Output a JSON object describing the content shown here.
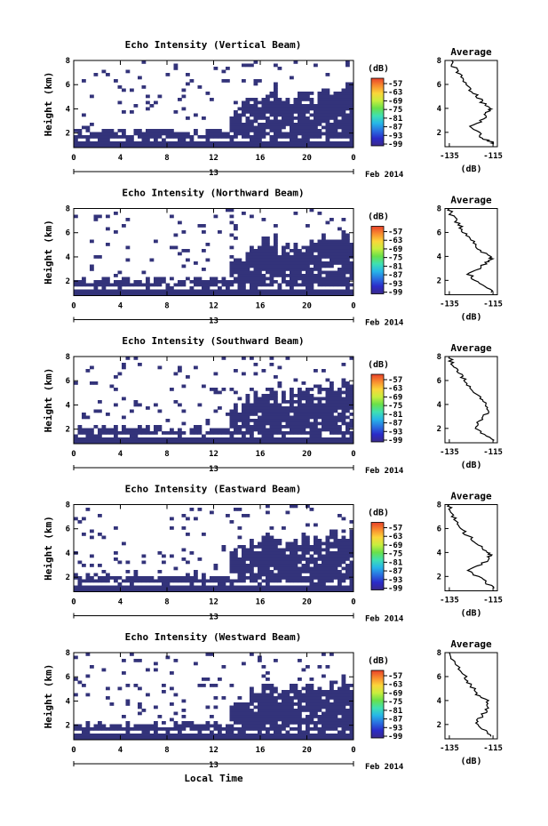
{
  "chart_data": [
    {
      "type": "heatmap",
      "title": "Echo Intensity (Vertical Beam)",
      "ylabel": "Height (km)",
      "x_ticks": [
        "0",
        "4",
        "8",
        "12",
        "16",
        "20",
        "0"
      ],
      "date_day": "13",
      "date_month_year": "Feb 2014",
      "ylim": [
        0.8,
        8
      ],
      "y_ticks": [
        "2",
        "4",
        "6",
        "8"
      ],
      "colorbar": {
        "unit": "(dB)",
        "ticks": [
          "-57",
          "-63",
          "-69",
          "-75",
          "-81",
          "-87",
          "-93",
          "-99"
        ]
      },
      "profile": {
        "title": "Average",
        "xlabel": "(dB)",
        "x_ticks": [
          "-135",
          "-115"
        ],
        "y_ticks": [
          "2",
          "4",
          "6",
          "8"
        ],
        "heights": [
          1.0,
          1.2,
          1.5,
          2.0,
          2.5,
          3.0,
          3.5,
          3.8,
          4.0,
          4.5,
          5.0,
          5.5,
          6.0,
          6.5,
          7.0,
          7.5,
          8.0
        ],
        "values": [
          -114,
          -116,
          -120,
          -122,
          -125,
          -120,
          -118,
          -117,
          -116,
          -120,
          -122,
          -125,
          -127,
          -129,
          -131,
          -133,
          -134
        ]
      }
    },
    {
      "type": "heatmap",
      "title": "Echo Intensity (Northward Beam)",
      "ylabel": "Height (km)",
      "x_ticks": [
        "0",
        "4",
        "8",
        "12",
        "16",
        "20",
        "0"
      ],
      "date_day": "13",
      "date_month_year": "Feb 2014",
      "ylim": [
        0.8,
        8
      ],
      "y_ticks": [
        "2",
        "4",
        "6",
        "8"
      ],
      "colorbar": {
        "unit": "(dB)",
        "ticks": [
          "-57",
          "-63",
          "-69",
          "-75",
          "-81",
          "-87",
          "-93",
          "-99"
        ]
      },
      "profile": {
        "title": "Average",
        "xlabel": "(dB)",
        "x_ticks": [
          "-135",
          "-115"
        ],
        "y_ticks": [
          "2",
          "4",
          "6",
          "8"
        ],
        "heights": [
          1.0,
          1.5,
          2.0,
          2.5,
          3.0,
          3.5,
          3.8,
          4.0,
          4.5,
          5.0,
          5.5,
          6.0,
          6.5,
          7.0,
          7.5,
          8.0
        ],
        "values": [
          -115,
          -118,
          -123,
          -126,
          -121,
          -118,
          -116,
          -117,
          -121,
          -123,
          -126,
          -128,
          -130,
          -132,
          -134,
          -135
        ]
      }
    },
    {
      "type": "heatmap",
      "title": "Echo Intensity (Southward Beam)",
      "ylabel": "Height (km)",
      "x_ticks": [
        "0",
        "4",
        "8",
        "12",
        "16",
        "20",
        "0"
      ],
      "date_day": "13",
      "date_month_year": "Feb 2014",
      "ylim": [
        0.8,
        8
      ],
      "y_ticks": [
        "2",
        "4",
        "6",
        "8"
      ],
      "colorbar": {
        "unit": "(dB)",
        "ticks": [
          "-57",
          "-63",
          "-69",
          "-75",
          "-81",
          "-87",
          "-93",
          "-99"
        ]
      },
      "profile": {
        "title": "Average",
        "xlabel": "(dB)",
        "x_ticks": [
          "-135",
          "-115"
        ],
        "y_ticks": [
          "2",
          "4",
          "6",
          "8"
        ],
        "heights": [
          1.0,
          1.5,
          2.0,
          2.5,
          3.0,
          3.5,
          4.0,
          4.5,
          5.0,
          5.5,
          6.0,
          6.5,
          7.0,
          7.5,
          8.0
        ],
        "values": [
          -115,
          -119,
          -124,
          -122,
          -119,
          -117,
          -118,
          -121,
          -123,
          -126,
          -128,
          -130,
          -132,
          -134,
          -135
        ]
      }
    },
    {
      "type": "heatmap",
      "title": "Echo Intensity (Eastward Beam)",
      "ylabel": "Height (km)",
      "x_ticks": [
        "0",
        "4",
        "8",
        "12",
        "16",
        "20",
        "0"
      ],
      "date_day": "13",
      "date_month_year": "Feb 2014",
      "ylim": [
        0.8,
        8
      ],
      "y_ticks": [
        "2",
        "4",
        "6",
        "8"
      ],
      "colorbar": {
        "unit": "(dB)",
        "ticks": [
          "-57",
          "-63",
          "-69",
          "-75",
          "-81",
          "-87",
          "-93",
          "-99"
        ]
      },
      "profile": {
        "title": "Average",
        "xlabel": "(dB)",
        "x_ticks": [
          "-135",
          "-115"
        ],
        "y_ticks": [
          "2",
          "4",
          "6",
          "8"
        ],
        "heights": [
          1.0,
          1.5,
          2.0,
          2.5,
          3.0,
          3.5,
          3.8,
          4.0,
          4.5,
          5.0,
          5.5,
          6.0,
          6.5,
          7.0,
          7.5,
          8.0
        ],
        "values": [
          -115,
          -118,
          -122,
          -126,
          -120,
          -117,
          -116,
          -117,
          -121,
          -124,
          -127,
          -130,
          -131,
          -133,
          -134,
          -135
        ]
      }
    },
    {
      "type": "heatmap",
      "title": "Echo Intensity (Westward Beam)",
      "ylabel": "Height (km)",
      "x_ticks": [
        "0",
        "4",
        "8",
        "12",
        "16",
        "20",
        "0"
      ],
      "date_day": "13",
      "date_month_year": "Feb 2014",
      "xlabel": "Local Time",
      "ylim": [
        0.8,
        8
      ],
      "y_ticks": [
        "2",
        "4",
        "6",
        "8"
      ],
      "colorbar": {
        "unit": "(dB)",
        "ticks": [
          "-57",
          "-63",
          "-69",
          "-75",
          "-81",
          "-87",
          "-93",
          "-99"
        ]
      },
      "profile": {
        "title": "Average",
        "xlabel": "(dB)",
        "x_ticks": [
          "-135",
          "-115"
        ],
        "y_ticks": [
          "2",
          "4",
          "6",
          "8"
        ],
        "heights": [
          1.0,
          1.5,
          2.0,
          2.5,
          3.0,
          3.5,
          4.0,
          4.5,
          5.0,
          5.5,
          6.0,
          6.5,
          7.0,
          7.5,
          8.0
        ],
        "values": [
          -116,
          -119,
          -123,
          -121,
          -119,
          -117,
          -118,
          -122,
          -124,
          -126,
          -128,
          -130,
          -132,
          -134,
          -135
        ]
      }
    }
  ],
  "colors": {
    "echo": "#33337a",
    "colorbar_gradient": [
      "#e8412a",
      "#f98d2f",
      "#fbd63a",
      "#c8ee3e",
      "#69e04a",
      "#3fe0b2",
      "#27b6e8",
      "#2a6fe0",
      "#2b2bc8",
      "#3a2a8a"
    ]
  }
}
